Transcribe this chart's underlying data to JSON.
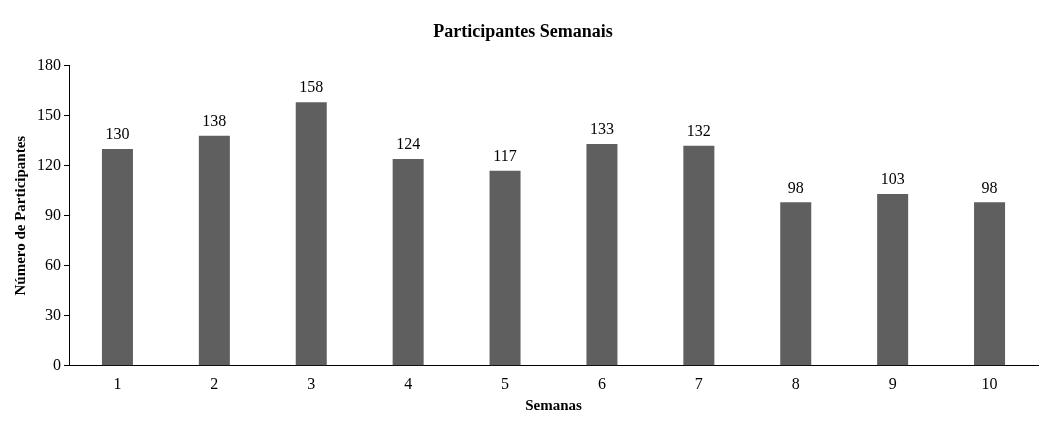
{
  "chart_data": {
    "type": "bar",
    "title": "Participantes Semanais",
    "xlabel": "Semanas",
    "ylabel": "Número de Participantes",
    "categories": [
      "1",
      "2",
      "3",
      "4",
      "5",
      "6",
      "7",
      "8",
      "9",
      "10"
    ],
    "values": [
      130,
      138,
      158,
      124,
      117,
      133,
      132,
      98,
      103,
      98
    ],
    "color": "#5f5f5f",
    "ylim": [
      0,
      180
    ],
    "yticks": [
      0,
      30,
      60,
      90,
      120,
      150,
      180
    ],
    "grid": false,
    "legend": false,
    "data_labels": true
  }
}
